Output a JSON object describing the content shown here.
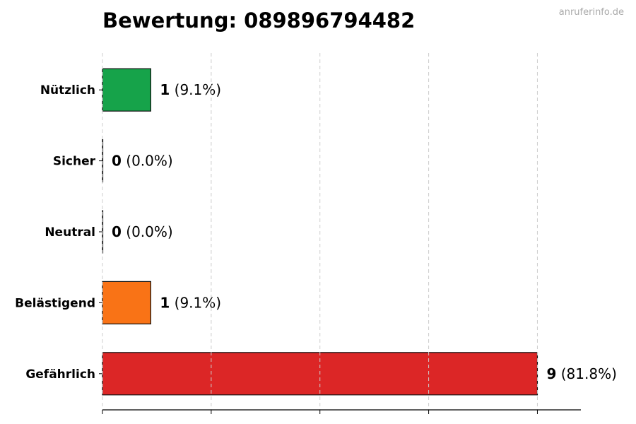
{
  "header": {
    "watermark": "anruferinfo.de"
  },
  "chart_data": {
    "type": "bar",
    "orientation": "horizontal",
    "title": "Bewertung: 089896794482",
    "categories": [
      "Nützlich",
      "Sicher",
      "Neutral",
      "Belästigend",
      "Gefährlich"
    ],
    "values": [
      1,
      0,
      0,
      1,
      9
    ],
    "percent_labels": [
      "(9.1%)",
      "(0.0%)",
      "(0.0%)",
      "(9.1%)",
      "(81.8%)"
    ],
    "colors": [
      "#16a34a",
      "#16a34a",
      "#9ca3af",
      "#f97316",
      "#dc2626"
    ],
    "xlabel": "",
    "ylabel": "",
    "xlim": [
      0,
      9.9
    ],
    "xticks": [
      0,
      2.25,
      4.5,
      6.75,
      9
    ],
    "grid": "x-dashed",
    "legend": "none"
  }
}
